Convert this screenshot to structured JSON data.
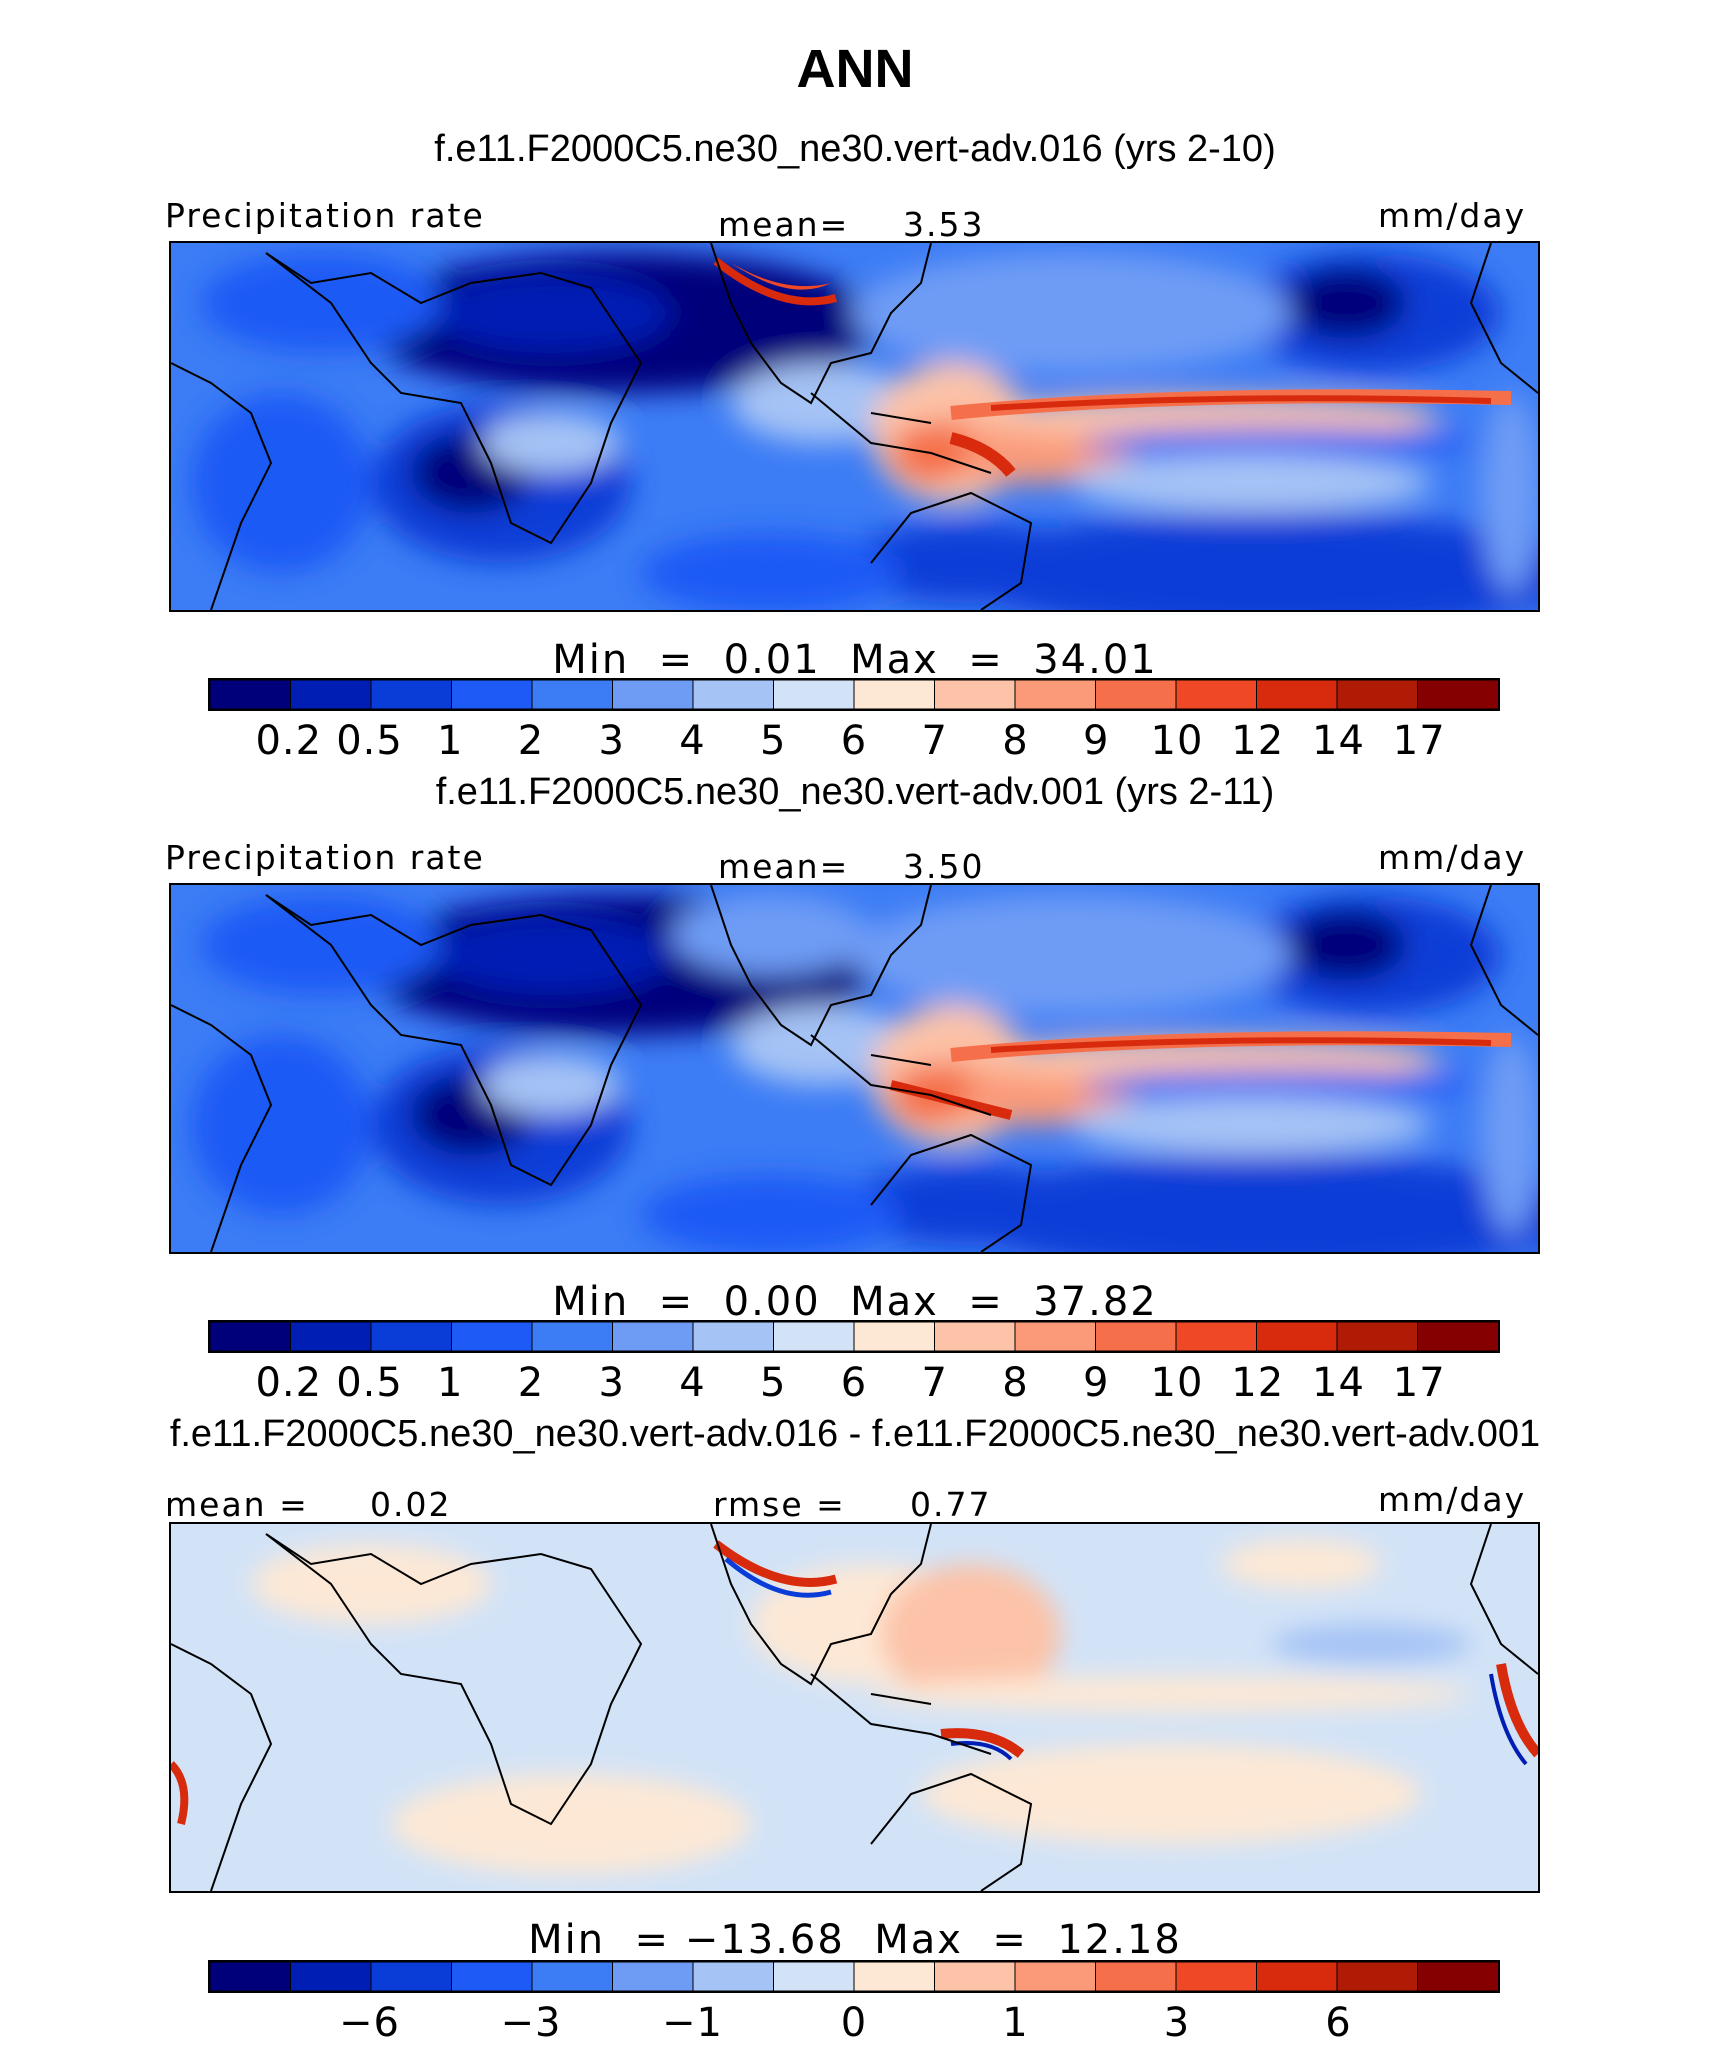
{
  "title": "ANN",
  "colors": [
    "#00007a",
    "#001eb4",
    "#0a3cd7",
    "#1e5af5",
    "#3c7cf5",
    "#6e9cf5",
    "#a5c3f5",
    "#d2e3f7",
    "#fde8d5",
    "#fcc3a8",
    "#fa9a78",
    "#f5704a",
    "#ee4826",
    "#d82b0d",
    "#b01b05",
    "#850000"
  ],
  "panels": [
    {
      "case": "f.e11.F2000C5.ne30_ne30.vert-adv.016 (yrs 2-10)",
      "left_label": "Precipitation  rate",
      "center_label": "mean=",
      "center_value": "3.53",
      "units": "mm/day",
      "min_label": "Min  =",
      "min_value": "0.01",
      "max_label": "Max  =",
      "max_value": "34.01",
      "ticks": [
        "0.2",
        "0.5",
        "1",
        "2",
        "3",
        "4",
        "5",
        "6",
        "7",
        "8",
        "9",
        "10",
        "12",
        "14",
        "17"
      ]
    },
    {
      "case": "f.e11.F2000C5.ne30_ne30.vert-adv.001 (yrs 2-11)",
      "left_label": "Precipitation  rate",
      "center_label": "mean=",
      "center_value": "3.50",
      "units": "mm/day",
      "min_label": "Min  =",
      "min_value": "0.00",
      "max_label": "Max  =",
      "max_value": "37.82",
      "ticks": [
        "0.2",
        "0.5",
        "1",
        "2",
        "3",
        "4",
        "5",
        "6",
        "7",
        "8",
        "9",
        "10",
        "12",
        "14",
        "17"
      ]
    },
    {
      "case": "f.e11.F2000C5.ne30_ne30.vert-adv.016 - f.e11.F2000C5.ne30_ne30.vert-adv.001",
      "left_label": "mean  =",
      "left_value": "0.02",
      "center_label": "rmse  =",
      "center_value": "0.77",
      "units": "mm/day",
      "min_label": "Min  =",
      "min_value": "−13.68",
      "max_label": "Max  =",
      "max_value": "12.18",
      "ticks": [
        "−6",
        "−3",
        "−1",
        "0",
        "1",
        "3",
        "6"
      ]
    }
  ]
}
